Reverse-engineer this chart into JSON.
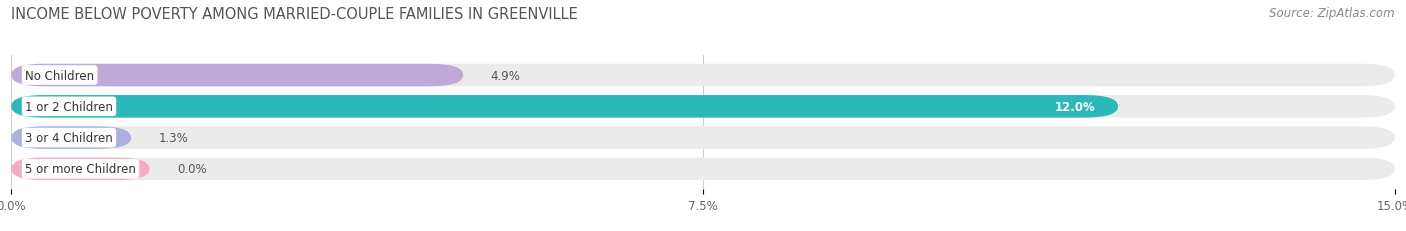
{
  "title": "INCOME BELOW POVERTY AMONG MARRIED-COUPLE FAMILIES IN GREENVILLE",
  "source": "Source: ZipAtlas.com",
  "categories": [
    "No Children",
    "1 or 2 Children",
    "3 or 4 Children",
    "5 or more Children"
  ],
  "values": [
    4.9,
    12.0,
    1.3,
    0.0
  ],
  "bar_colors": [
    "#c0a8d8",
    "#2ab8b8",
    "#aab0e0",
    "#f8aac0"
  ],
  "xlim": [
    0,
    15.0
  ],
  "xticks": [
    0.0,
    7.5,
    15.0
  ],
  "xtick_labels": [
    "0.0%",
    "7.5%",
    "15.0%"
  ],
  "background_color": "#ffffff",
  "bar_bg_color": "#ebebeb",
  "bar_separator_color": "#ffffff",
  "title_fontsize": 10.5,
  "source_fontsize": 8.5,
  "label_fontsize": 8.5,
  "value_fontsize": 8.5,
  "tick_fontsize": 8.5,
  "bar_height": 0.72,
  "value_inside_color": "#ffffff",
  "value_outside_color": "#555555"
}
